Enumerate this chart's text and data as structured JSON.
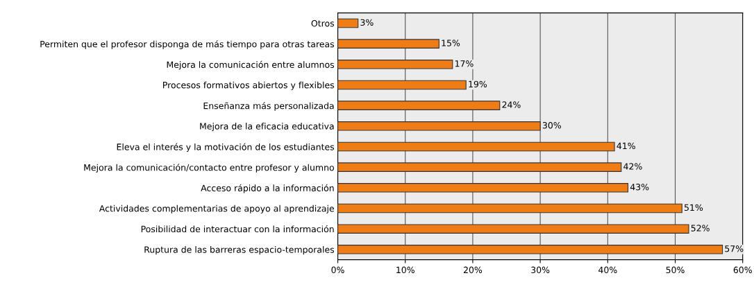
{
  "chart_data": {
    "type": "bar",
    "orientation": "horizontal",
    "categories": [
      "Otros",
      "Permiten que el profesor disponga de más tiempo para otras tareas",
      "Mejora la comunicación entre alumnos",
      "Procesos formativos abiertos y flexibles",
      "Enseñanza más personalizada",
      "Mejora de la eficacia educativa",
      "Eleva el interés y la motivación de los estudiantes",
      "Mejora la comunicación/contacto entre profesor y alumno",
      "Acceso rápido a la información",
      "Actividades complementarias de apoyo al aprendizaje",
      "Posibilidad de interactuar con la información",
      "Ruptura de las barreras espacio-temporales"
    ],
    "values": [
      3,
      15,
      17,
      19,
      24,
      30,
      41,
      42,
      43,
      51,
      52,
      57
    ],
    "value_labels": [
      "3%",
      "15%",
      "17%",
      "19%",
      "24%",
      "30%",
      "41%",
      "42%",
      "43%",
      "51%",
      "52%",
      "57%"
    ],
    "color": "#f07c16",
    "xlim": [
      0,
      60
    ],
    "xticks": [
      {
        "value": 0,
        "label": "0%"
      },
      {
        "value": 10,
        "label": "10%"
      },
      {
        "value": 20,
        "label": "20%"
      },
      {
        "value": 30,
        "label": "30%"
      },
      {
        "value": 40,
        "label": "40%"
      },
      {
        "value": 50,
        "label": "50%"
      },
      {
        "value": 60,
        "label": "60%"
      }
    ],
    "grid": "x",
    "legend": false
  }
}
